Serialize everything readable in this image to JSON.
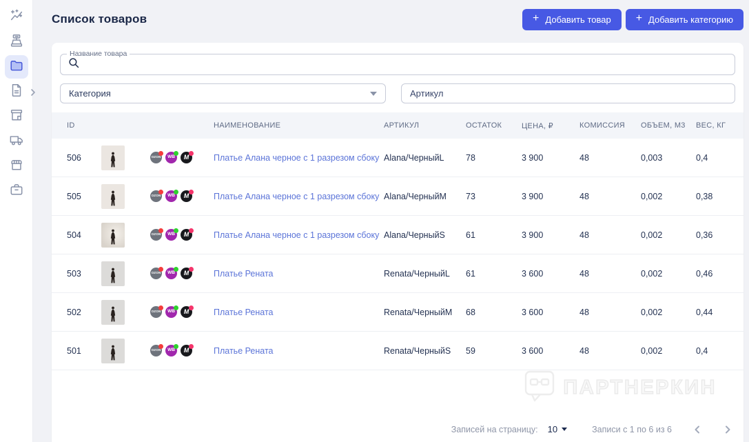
{
  "page": {
    "title": "Список товаров"
  },
  "actions": {
    "plus": "+",
    "add_product": "Добавить товар",
    "add_category": "Добавить категорию"
  },
  "sidebar": {
    "items": [
      {
        "icon": "analytics-icon",
        "active": false
      },
      {
        "icon": "cash-register-icon",
        "active": false
      },
      {
        "icon": "products-folder-icon",
        "active": true
      },
      {
        "icon": "documents-icon",
        "active": false,
        "expandable": true
      },
      {
        "icon": "store-icon",
        "active": false
      },
      {
        "icon": "delivery-truck-icon",
        "active": false
      },
      {
        "icon": "storefront-awning-icon",
        "active": false
      },
      {
        "icon": "briefcase-icon",
        "active": false
      }
    ]
  },
  "filters": {
    "product_name_label": "Название товара",
    "category_placeholder": "Категория",
    "sku_placeholder": "Артикул"
  },
  "table": {
    "columns": [
      "ID",
      "НАИМЕНОВАНИЕ",
      "АРТИКУЛ",
      "ОСТАТОК",
      "ЦЕНА, ₽",
      "КОМИССИЯ",
      "ОБЪЕМ, М3",
      "ВЕС, КГ"
    ],
    "marketplaces": [
      {
        "name": "ozon",
        "label": "OZON",
        "bg": "#6e737c",
        "dot": "#f43c3c"
      },
      {
        "name": "wildberries",
        "label": "WB",
        "bg": "#a127ad",
        "dot": "#2fd32f"
      },
      {
        "name": "megamarket",
        "label": "M",
        "bg": "#18191d",
        "dot": "#f5356b"
      }
    ],
    "rows": [
      {
        "id": "506",
        "name": "Платье Алана черное с 1 разрезом сбоку",
        "sku": "Alana/ЧерныйL",
        "stock": "78",
        "price": "3 900",
        "commission": "48",
        "volume": "0,003",
        "weight": "0,4",
        "image": "pose-a"
      },
      {
        "id": "505",
        "name": "Платье Алана черное с 1 разрезом сбоку",
        "sku": "Alana/ЧерныйM",
        "stock": "73",
        "price": "3 900",
        "commission": "48",
        "volume": "0,002",
        "weight": "0,38",
        "image": "pose-a"
      },
      {
        "id": "504",
        "name": "Платье Алана черное с 1 разрезом сбоку",
        "sku": "Alana/ЧерныйS",
        "stock": "61",
        "price": "3 900",
        "commission": "48",
        "volume": "0,002",
        "weight": "0,36",
        "image": "pose-b"
      },
      {
        "id": "503",
        "name": "Платье Рената",
        "sku": "Renata/ЧерныйL",
        "stock": "61",
        "price": "3 600",
        "commission": "48",
        "volume": "0,002",
        "weight": "0,46",
        "image": "pose-c"
      },
      {
        "id": "502",
        "name": "Платье Рената",
        "sku": "Renata/ЧерныйM",
        "stock": "68",
        "price": "3 600",
        "commission": "48",
        "volume": "0,002",
        "weight": "0,44",
        "image": "pose-c"
      },
      {
        "id": "501",
        "name": "Платье Рената",
        "sku": "Renata/ЧерныйS",
        "stock": "59",
        "price": "3 600",
        "commission": "48",
        "volume": "0,002",
        "weight": "0,4",
        "image": "pose-c"
      }
    ]
  },
  "pagination": {
    "per_page_label": "Записей на страницу:",
    "per_page_value": "10",
    "range_label": "Записи с 1 по 6 из 6"
  },
  "watermark": {
    "text": "ПАРТНЕРКИН"
  },
  "colors": {
    "accent": "#4759e4",
    "link": "#5b74d8",
    "background": "#f1f2f6"
  }
}
